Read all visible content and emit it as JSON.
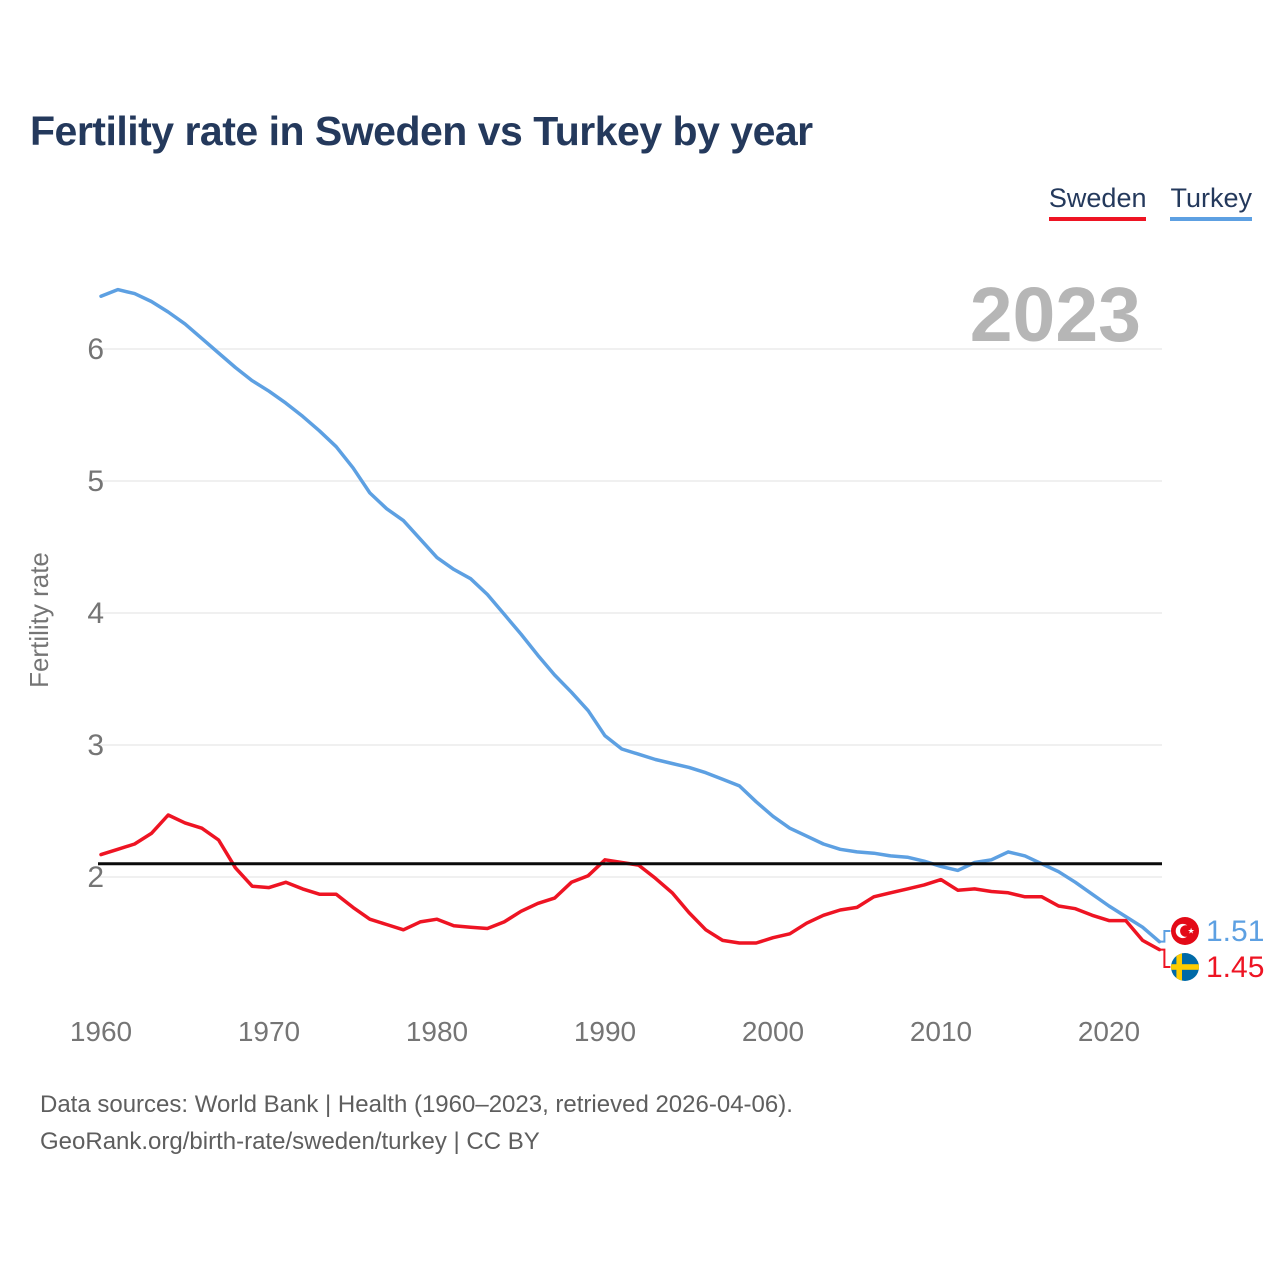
{
  "title": "Fertility rate in Sweden vs Turkey by year",
  "legend": {
    "items": [
      {
        "label": "Sweden",
        "color": "#ee1423"
      },
      {
        "label": "Turkey",
        "color": "#5da0e2"
      }
    ]
  },
  "watermark": "2023",
  "footer": {
    "line1": "Data sources: World Bank | Health (1960–2023, retrieved 2026-04-06).",
    "line2": "GeoRank.org/birth-rate/sweden/turkey | CC BY"
  },
  "chart_data": {
    "type": "line",
    "title": "Fertility rate in Sweden vs Turkey by year",
    "xlabel": "",
    "ylabel": "Fertility rate",
    "grid": true,
    "legend_position": "top-right",
    "ylim": [
      1.3,
      6.6
    ],
    "xlim": [
      1960,
      2023
    ],
    "y_ticks": [
      2,
      3,
      4,
      5,
      6
    ],
    "x_ticks": [
      1960,
      1970,
      1980,
      1990,
      2000,
      2010,
      2020
    ],
    "reference_line": 2.1,
    "years": [
      1960,
      1961,
      1962,
      1963,
      1964,
      1965,
      1966,
      1967,
      1968,
      1969,
      1970,
      1971,
      1972,
      1973,
      1974,
      1975,
      1976,
      1977,
      1978,
      1979,
      1980,
      1981,
      1982,
      1983,
      1984,
      1985,
      1986,
      1987,
      1988,
      1989,
      1990,
      1991,
      1992,
      1993,
      1994,
      1995,
      1996,
      1997,
      1998,
      1999,
      2000,
      2001,
      2002,
      2003,
      2004,
      2005,
      2006,
      2007,
      2008,
      2009,
      2010,
      2011,
      2012,
      2013,
      2014,
      2015,
      2016,
      2017,
      2018,
      2019,
      2020,
      2021,
      2022,
      2023
    ],
    "series": [
      {
        "name": "Turkey",
        "color": "#5da0e2",
        "values": [
          6.4,
          6.45,
          6.42,
          6.36,
          6.28,
          6.19,
          6.08,
          5.97,
          5.86,
          5.76,
          5.68,
          5.59,
          5.49,
          5.38,
          5.26,
          5.1,
          4.91,
          4.79,
          4.7,
          4.56,
          4.42,
          4.33,
          4.26,
          4.14,
          3.99,
          3.84,
          3.68,
          3.53,
          3.4,
          3.26,
          3.07,
          2.97,
          2.93,
          2.89,
          2.86,
          2.83,
          2.79,
          2.74,
          2.69,
          2.57,
          2.46,
          2.37,
          2.31,
          2.25,
          2.21,
          2.19,
          2.18,
          2.16,
          2.15,
          2.12,
          2.08,
          2.05,
          2.11,
          2.13,
          2.19,
          2.16,
          2.1,
          2.04,
          1.96,
          1.87,
          1.78,
          1.7,
          1.62,
          1.51
        ]
      },
      {
        "name": "Sweden",
        "color": "#ee1423",
        "values": [
          2.17,
          2.21,
          2.25,
          2.33,
          2.47,
          2.41,
          2.37,
          2.28,
          2.07,
          1.93,
          1.92,
          1.96,
          1.91,
          1.87,
          1.87,
          1.77,
          1.68,
          1.64,
          1.6,
          1.66,
          1.68,
          1.63,
          1.62,
          1.61,
          1.66,
          1.74,
          1.8,
          1.84,
          1.96,
          2.01,
          2.13,
          2.11,
          2.09,
          1.99,
          1.88,
          1.73,
          1.6,
          1.52,
          1.5,
          1.5,
          1.54,
          1.57,
          1.65,
          1.71,
          1.75,
          1.77,
          1.85,
          1.88,
          1.91,
          1.94,
          1.98,
          1.9,
          1.91,
          1.89,
          1.88,
          1.85,
          1.85,
          1.78,
          1.76,
          1.71,
          1.67,
          1.67,
          1.52,
          1.45
        ]
      }
    ],
    "end_labels": [
      {
        "series": "Turkey",
        "value": "1.51",
        "color": "#5da0e2",
        "flag": "turkey-flag-icon"
      },
      {
        "series": "Sweden",
        "value": "1.45",
        "color": "#ee1423",
        "flag": "sweden-flag-icon"
      }
    ]
  }
}
